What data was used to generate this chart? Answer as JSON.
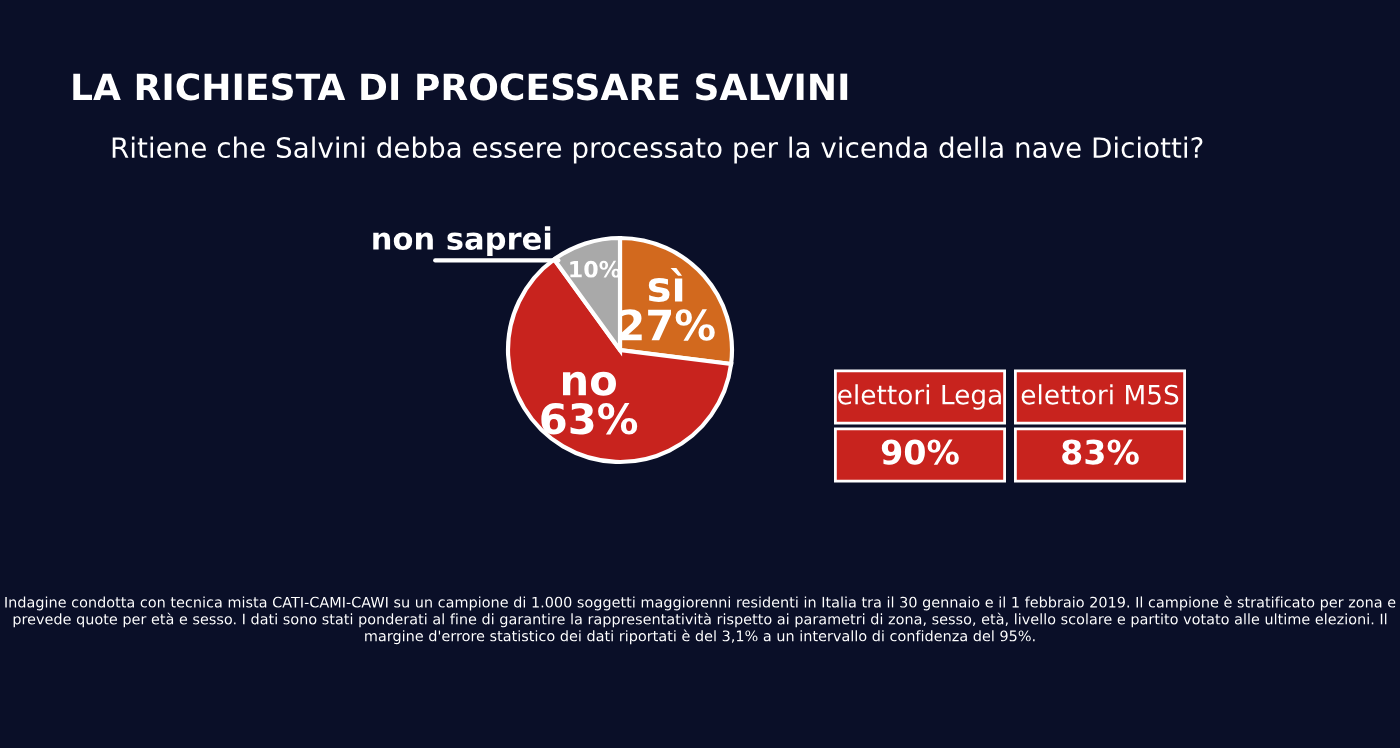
{
  "chart_data": [
    {
      "type": "pie",
      "title": "LA RICHIESTA DI PROCESSARE SALVINI",
      "subtitle": "Ritiene che Salvini debba essere processato per la vicenda della nave Diciotti?",
      "categories": [
        "sì",
        "no",
        "non saprei"
      ],
      "values": [
        27,
        63,
        10
      ],
      "value_labels": [
        "27%",
        "63%",
        "10%"
      ],
      "colors": [
        "#d2691e",
        "#c8231e",
        "#a9a9a9"
      ],
      "annotations": [
        "Indagine condotta con tecnica mista CATI-CAMI-CAWI su un campione di 1.000 soggetti maggiorenni residenti in Italia tra il 30 gennaio e il 1 febbraio 2019. Il campione è stratificato per zona e prevede quote per età e sesso. I dati sono stati ponderati al fine di garantire la rappresentatività rispetto ai parametri di zona, sesso, età, livello scolare e partito votato alle ultime elezioni. Il margine d'errore statistico dei dati riportati è del 3,1% a un intervallo di confidenza del 95%."
      ]
    },
    {
      "type": "other",
      "categories": [
        "elettori Lega",
        "elettori M5S"
      ],
      "values": [
        90,
        83
      ],
      "value_labels": [
        "90%",
        "83%"
      ],
      "colors": [
        "#c8231e",
        "#c8231e"
      ]
    }
  ]
}
